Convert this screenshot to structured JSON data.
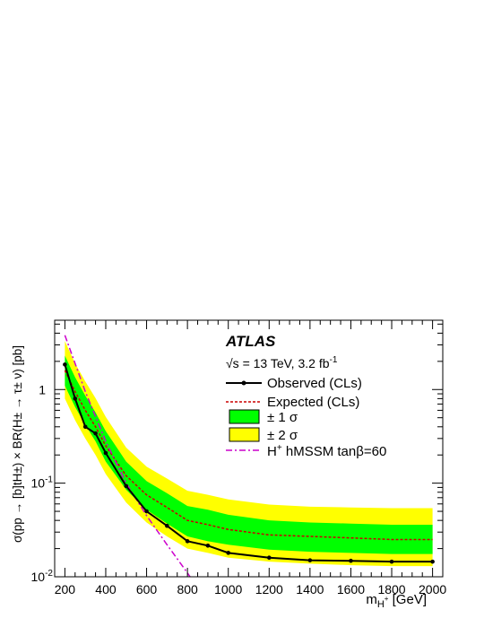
{
  "chart_data": {
    "type": "line",
    "experiment": "ATLAS",
    "energy_label": "√s = 13 TeV, 3.2 fb",
    "energy_label_sup": "-1",
    "xlabel": "m",
    "xlabel_sub": "H",
    "xlabel_sub_sup": "+",
    "xlabel_unit": "[GeV]",
    "ylabel": "σ(pp → [b]tH±) × BR(H± → τ± ν) [pb]",
    "xlim": [
      150,
      2050
    ],
    "ylim": [
      0.01,
      5.5
    ],
    "y_scale": "log",
    "x_ticks": [
      200,
      400,
      600,
      800,
      1000,
      1200,
      1400,
      1600,
      1800,
      2000
    ],
    "y_ticks": [
      {
        "value": 1,
        "label": "1",
        "exp": ""
      },
      {
        "value": 0.1,
        "label": "10",
        "exp": "-1"
      },
      {
        "value": 0.01,
        "label": "10",
        "exp": "-2"
      }
    ],
    "legend_position": "top-right",
    "legend": {
      "observed": "Observed (CLs)",
      "expected": "Expected (CLs)",
      "one_sigma": "± 1 σ",
      "two_sigma": "± 2 σ",
      "theory_prefix": "H",
      "theory_sup": "+",
      "theory_suffix": " hMSSM tanβ=60"
    },
    "colors": {
      "observed": "#000000",
      "expected": "#cc0000",
      "one_sigma": "#00ff00",
      "two_sigma": "#ffff00",
      "theory": "#cc00cc"
    },
    "x": [
      200,
      250,
      300,
      350,
      400,
      500,
      600,
      700,
      800,
      900,
      1000,
      1200,
      1400,
      1600,
      1800,
      2000
    ],
    "observed": [
      1.85,
      0.8,
      0.4,
      0.34,
      0.21,
      0.093,
      0.05,
      0.035,
      0.024,
      0.0215,
      0.018,
      0.016,
      0.015,
      0.0148,
      0.0145,
      0.0145
    ],
    "expected": [
      1.6,
      0.95,
      0.6,
      0.4,
      0.25,
      0.12,
      0.075,
      0.055,
      0.04,
      0.036,
      0.032,
      0.028,
      0.027,
      0.026,
      0.025,
      0.025
    ],
    "band_1sigma_low": [
      1.1,
      0.65,
      0.42,
      0.28,
      0.17,
      0.085,
      0.052,
      0.037,
      0.027,
      0.024,
      0.022,
      0.0195,
      0.0185,
      0.018,
      0.0175,
      0.0175
    ],
    "band_1sigma_high": [
      2.3,
      1.35,
      0.86,
      0.57,
      0.36,
      0.17,
      0.105,
      0.078,
      0.057,
      0.052,
      0.046,
      0.04,
      0.038,
      0.037,
      0.036,
      0.036
    ],
    "band_2sigma_low": [
      0.8,
      0.47,
      0.3,
      0.2,
      0.125,
      0.062,
      0.038,
      0.027,
      0.02,
      0.018,
      0.016,
      0.0145,
      0.0138,
      0.0133,
      0.013,
      0.013
    ],
    "band_2sigma_high": [
      3.3,
      1.9,
      1.22,
      0.81,
      0.51,
      0.24,
      0.15,
      0.112,
      0.083,
      0.075,
      0.067,
      0.059,
      0.056,
      0.055,
      0.054,
      0.054
    ],
    "theory_x": [
      200,
      300,
      400,
      500,
      600,
      700,
      800,
      900
    ],
    "theory": [
      3.8,
      0.95,
      0.28,
      0.1,
      0.045,
      0.022,
      0.011,
      0.0052
    ]
  }
}
